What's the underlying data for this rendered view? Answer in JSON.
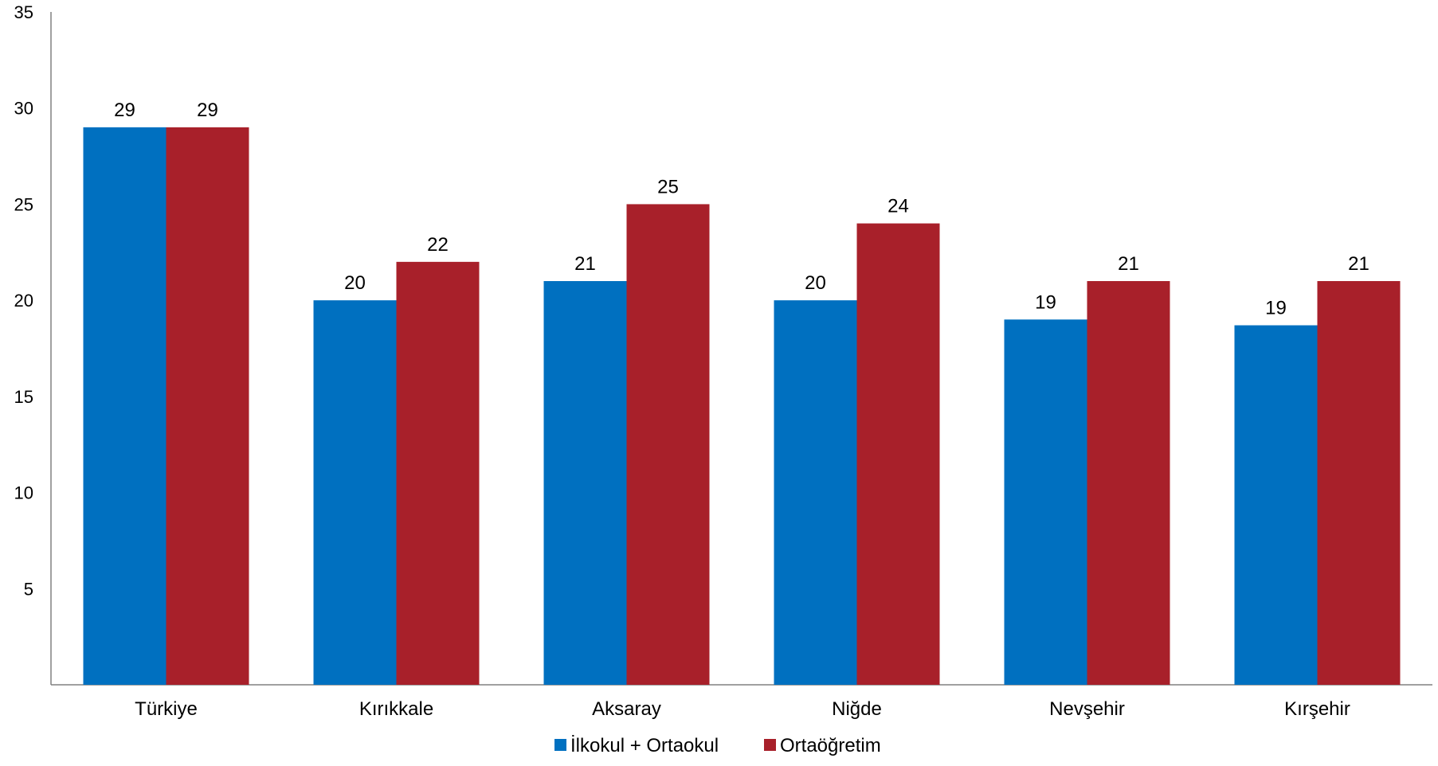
{
  "chart_data": {
    "type": "bar",
    "title": "",
    "xlabel": "",
    "ylabel": "",
    "ylim": [
      0,
      35
    ],
    "yticks": [
      5,
      10,
      15,
      20,
      25,
      30,
      35
    ],
    "categories": [
      "Türkiye",
      "Kırıkkale",
      "Aksaray",
      "Niğde",
      "Nevşehir",
      "Kırşehir"
    ],
    "series": [
      {
        "name": "İlkokul + Ortaokul",
        "color": "#0070C0",
        "values": [
          29,
          20,
          21,
          20,
          19,
          18.7
        ],
        "labels": [
          "29",
          "20",
          "21",
          "20",
          "19",
          "19"
        ]
      },
      {
        "name": "Ortaöğretim",
        "color": "#A8202A",
        "values": [
          29,
          22,
          25,
          24,
          21,
          21
        ],
        "labels": [
          "29",
          "22",
          "25",
          "24",
          "21",
          "21"
        ]
      }
    ],
    "grid": false,
    "legend_position": "bottom"
  }
}
